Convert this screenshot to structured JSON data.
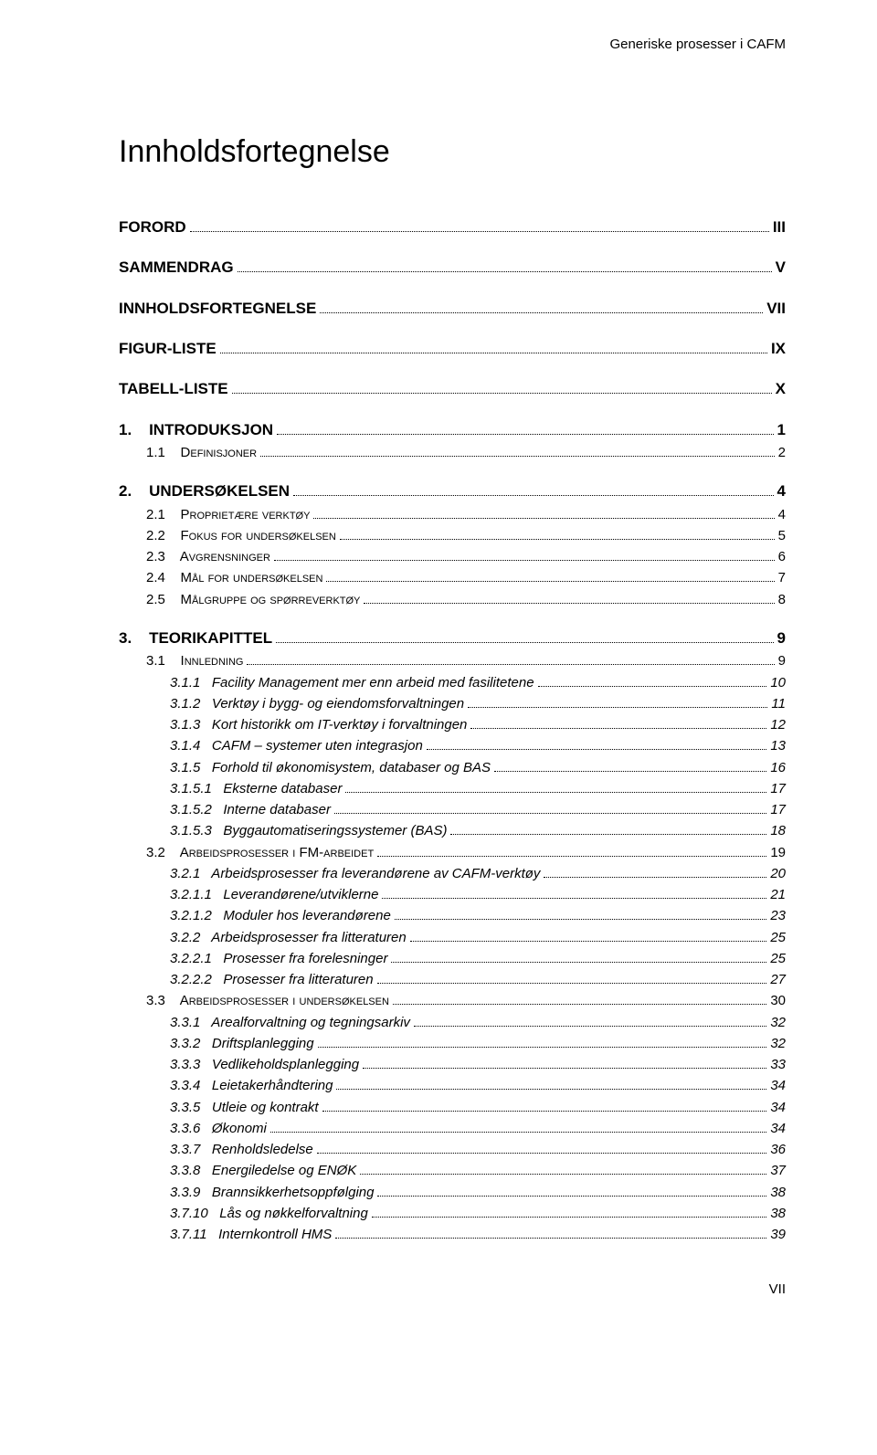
{
  "running_header": "Generiske prosesser i CAFM",
  "doc_title": "Innholdsfortegnelse",
  "page_number": "VII",
  "toc": [
    {
      "level": 0,
      "num": "",
      "title": "FORORD",
      "page": "III"
    },
    {
      "level": 0,
      "num": "",
      "title": "SAMMENDRAG",
      "page": "V"
    },
    {
      "level": 0,
      "num": "",
      "title": "INNHOLDSFORTEGNELSE",
      "page": "VII"
    },
    {
      "level": 0,
      "num": "",
      "title": "FIGUR-LISTE",
      "page": "IX"
    },
    {
      "level": 0,
      "num": "",
      "title": "TABELL-LISTE",
      "page": "X"
    },
    {
      "level": 0,
      "num": "1.",
      "title": "INTRODUKSJON",
      "page": "1"
    },
    {
      "level": 1,
      "num": "1.1",
      "title": "Definisjoner",
      "page": "2"
    },
    {
      "level": 0,
      "num": "2.",
      "title": "UNDERSØKELSEN",
      "page": "4"
    },
    {
      "level": 1,
      "num": "2.1",
      "title": "Proprietære verktøy",
      "page": "4"
    },
    {
      "level": 1,
      "num": "2.2",
      "title": "Fokus for undersøkelsen",
      "page": "5"
    },
    {
      "level": 1,
      "num": "2.3",
      "title": "Avgrensninger",
      "page": "6"
    },
    {
      "level": 1,
      "num": "2.4",
      "title": "Mål for undersøkelsen",
      "page": "7"
    },
    {
      "level": 1,
      "num": "2.5",
      "title": "Målgruppe og spørreverktøy",
      "page": "8"
    },
    {
      "level": 0,
      "num": "3.",
      "title": "TEORIKAPITTEL",
      "page": "9"
    },
    {
      "level": 1,
      "num": "3.1",
      "title": "Innledning",
      "page": "9"
    },
    {
      "level": 2,
      "num": "3.1.1",
      "title": "Facility Management mer enn arbeid med fasilitetene",
      "page": "10"
    },
    {
      "level": 2,
      "num": "3.1.2",
      "title": "Verktøy i bygg- og eiendomsforvaltningen",
      "page": "11"
    },
    {
      "level": 2,
      "num": "3.1.3",
      "title": "Kort historikk om IT-verktøy i forvaltningen",
      "page": "12"
    },
    {
      "level": 2,
      "num": "3.1.4",
      "title": "CAFM – systemer uten integrasjon",
      "page": "13"
    },
    {
      "level": 2,
      "num": "3.1.5",
      "title": "Forhold til økonomisystem, databaser og BAS",
      "page": "16"
    },
    {
      "level": 3,
      "num": "3.1.5.1",
      "title": "Eksterne databaser",
      "page": "17"
    },
    {
      "level": 3,
      "num": "3.1.5.2",
      "title": "Interne databaser",
      "page": "17"
    },
    {
      "level": 3,
      "num": "3.1.5.3",
      "title": "Byggautomatiseringssystemer (BAS)",
      "page": "18"
    },
    {
      "level": 1,
      "num": "3.2",
      "title": "Arbeidsprosesser i FM-arbeidet",
      "page": "19"
    },
    {
      "level": 2,
      "num": "3.2.1",
      "title": "Arbeidsprosesser fra leverandørene av CAFM-verktøy",
      "page": "20"
    },
    {
      "level": 3,
      "num": "3.2.1.1",
      "title": "Leverandørene/utviklerne",
      "page": "21"
    },
    {
      "level": 3,
      "num": "3.2.1.2",
      "title": "Moduler hos leverandørene",
      "page": "23"
    },
    {
      "level": 2,
      "num": "3.2.2",
      "title": "Arbeidsprosesser fra litteraturen",
      "page": "25"
    },
    {
      "level": 3,
      "num": "3.2.2.1",
      "title": "Prosesser fra forelesninger",
      "page": "25"
    },
    {
      "level": 3,
      "num": "3.2.2.2",
      "title": "Prosesser fra litteraturen",
      "page": "27"
    },
    {
      "level": 1,
      "num": "3.3",
      "title": "Arbeidsprosesser i undersøkelsen",
      "page": "30"
    },
    {
      "level": 2,
      "num": "3.3.1",
      "title": "Arealforvaltning og tegningsarkiv",
      "page": "32"
    },
    {
      "level": 2,
      "num": "3.3.2",
      "title": "Driftsplanlegging",
      "page": "32"
    },
    {
      "level": 2,
      "num": "3.3.3",
      "title": "Vedlikeholdsplanlegging",
      "page": "33"
    },
    {
      "level": 2,
      "num": "3.3.4",
      "title": "Leietakerhåndtering",
      "page": "34"
    },
    {
      "level": 2,
      "num": "3.3.5",
      "title": "Utleie og kontrakt",
      "page": "34"
    },
    {
      "level": 2,
      "num": "3.3.6",
      "title": "Økonomi",
      "page": "34"
    },
    {
      "level": 2,
      "num": "3.3.7",
      "title": "Renholdsledelse",
      "page": "36"
    },
    {
      "level": 2,
      "num": "3.3.8",
      "title": "Energiledelse og ENØK",
      "page": "37"
    },
    {
      "level": 2,
      "num": "3.3.9",
      "title": "Brannsikkerhetsoppfølging",
      "page": "38"
    },
    {
      "level": 2,
      "num": "3.7.10",
      "title": "Lås og nøkkelforvaltning",
      "page": "38"
    },
    {
      "level": 2,
      "num": "3.7.11",
      "title": "Internkontroll HMS",
      "page": "39"
    }
  ]
}
